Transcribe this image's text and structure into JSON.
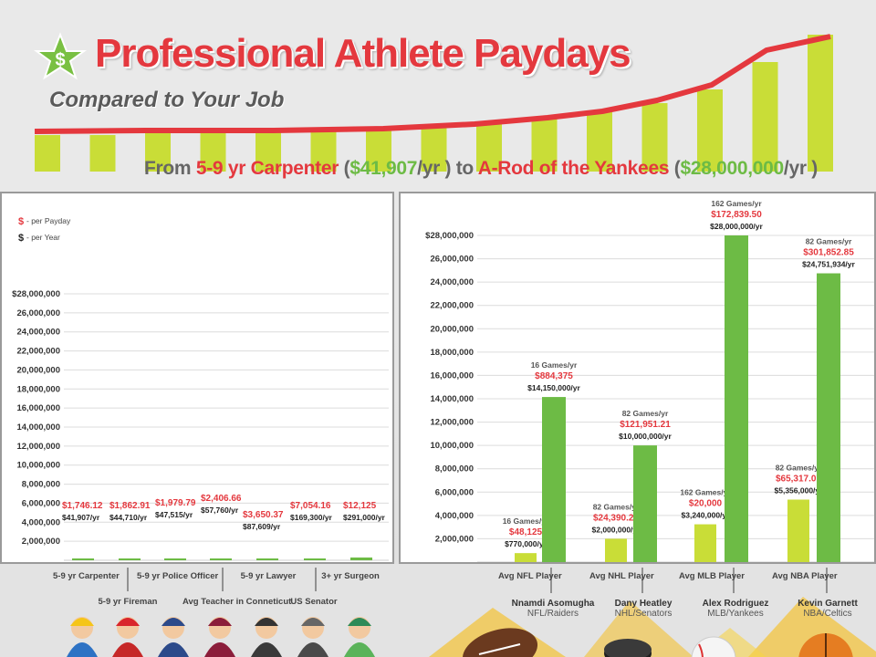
{
  "header": {
    "title": "Professional Athlete Paydays",
    "subtitle": "Compared to Your Job",
    "compare_from": "From ",
    "compare_job": "5-9 yr Carpenter",
    "compare_open1": " (",
    "compare_job_pay": "$41,907",
    "compare_mid": "/yr ) to ",
    "compare_athlete": "A-Rod of the Yankees",
    "compare_open2": " (",
    "compare_athlete_pay": "$28,000,000",
    "compare_end": "/yr )"
  },
  "legend": {
    "payday_symbol": "$",
    "payday_text": "- per Payday",
    "year_symbol": "$",
    "year_text": "- per Year"
  },
  "colors": {
    "red": "#e4383e",
    "green": "#6dbb45",
    "light_green": "#c9dd37",
    "gray_text": "#555555"
  },
  "chart_data": [
    {
      "type": "bar",
      "panel": "jobs",
      "ylim": [
        0,
        28000000
      ],
      "yticks": [
        "$28,000,000",
        "26,000,000",
        "24,000,000",
        "22,000,000",
        "20,000,000",
        "18,000,000",
        "16,000,000",
        "14,000,000",
        "12,000,000",
        "10,000,000",
        "8,000,000",
        "6,000,000",
        "4,000,000",
        "2,000,000"
      ],
      "ytick_values": [
        28000000,
        26000000,
        24000000,
        22000000,
        20000000,
        18000000,
        16000000,
        14000000,
        12000000,
        10000000,
        8000000,
        6000000,
        4000000,
        2000000
      ],
      "categories": [
        "5-9 yr Carpenter",
        "5-9 yr Fireman",
        "5-9 yr Police Officer",
        "Avg Teacher in Conneticut",
        "5-9 yr Lawyer",
        "US Senator",
        "3+ yr Surgeon"
      ],
      "series": [
        {
          "name": "per Year",
          "values": [
            41907,
            44710,
            47515,
            57760,
            87609,
            169300,
            291000
          ]
        }
      ],
      "payday_labels": [
        "$1,746.12",
        "$1,862.91",
        "$1,979.79",
        "$2,406.66",
        "$3,650.37",
        "$7,054.16",
        "$12,125"
      ],
      "year_labels": [
        "$41,907/yr",
        "$44,710/yr",
        "$47,515/yr",
        "$57,760/yr",
        "$87,609/yr",
        "$169,300/yr",
        "$291,000/yr"
      ]
    },
    {
      "type": "bar",
      "panel": "athletes",
      "ylim": [
        0,
        28000000
      ],
      "yticks": [
        "$28,000,000",
        "26,000,000",
        "24,000,000",
        "22,000,000",
        "20,000,000",
        "18,000,000",
        "16,000,000",
        "14,000,000",
        "12,000,000",
        "10,000,000",
        "8,000,000",
        "6,000,000",
        "4,000,000",
        "2,000,000"
      ],
      "ytick_values": [
        28000000,
        26000000,
        24000000,
        22000000,
        20000000,
        18000000,
        16000000,
        14000000,
        12000000,
        10000000,
        8000000,
        6000000,
        4000000,
        2000000
      ],
      "categories": [
        "NFL",
        "NHL",
        "MLB",
        "NBA"
      ],
      "series": [
        {
          "name": "Avg Player",
          "values": [
            770000,
            2000000,
            3240000,
            5356000
          ]
        },
        {
          "name": "Star Player",
          "values": [
            14150000,
            10000000,
            28000000,
            24751934
          ]
        }
      ],
      "avg_labels": [
        {
          "games": "16 Games/yr",
          "payday": "$48,125",
          "year": "$770,000/yr"
        },
        {
          "games": "82 Games/yr",
          "payday": "$24,390.24",
          "year": "$2,000,000/yr"
        },
        {
          "games": "162 Games/yr",
          "payday": "$20,000",
          "year": "$3,240,000/yr"
        },
        {
          "games": "82 Games/yr",
          "payday": "$65,317.07",
          "year": "$5,356,000/yr"
        }
      ],
      "star_labels": [
        {
          "games": "16 Games/yr",
          "payday": "$884,375",
          "year": "$14,150,000/yr"
        },
        {
          "games": "82 Games/yr",
          "payday": "$121,951.21",
          "year": "$10,000,000/yr"
        },
        {
          "games": "162 Games/yr",
          "payday": "$172,839.50",
          "year": "$28,000,000/yr"
        },
        {
          "games": "82 Games/yr",
          "payday": "$301,852.85",
          "year": "$24,751,934/yr"
        }
      ],
      "avg_names": [
        "Avg NFL Player",
        "Avg NHL Player",
        "Avg MLB Player",
        "Avg NBA Player"
      ],
      "star_names": [
        "Nnamdi Asomugha",
        "Dany Heatley",
        "Alex Rodriguez",
        "Kevin Garnett"
      ],
      "star_teams": [
        "NFL/Raiders",
        "NHL/Senators",
        "MLB/Yankees",
        "NBA/Celtics"
      ]
    }
  ],
  "jobs_labels": {
    "top": [
      "5-9 yr Carpenter",
      "5-9 yr Police Officer",
      "5-9 yr Lawyer",
      "3+ yr Surgeon"
    ],
    "bottom": [
      "5-9 yr Fireman",
      "Avg Teacher in Conneticut",
      "US Senator"
    ]
  },
  "icons": [
    "dollar-star-icon",
    "construction-worker-icon",
    "firefighter-icon",
    "police-officer-icon",
    "teacher-icon",
    "lawyer-icon",
    "senator-icon",
    "surgeon-icon",
    "football-icon",
    "hockey-puck-icon",
    "baseball-icon",
    "basketball-icon"
  ]
}
